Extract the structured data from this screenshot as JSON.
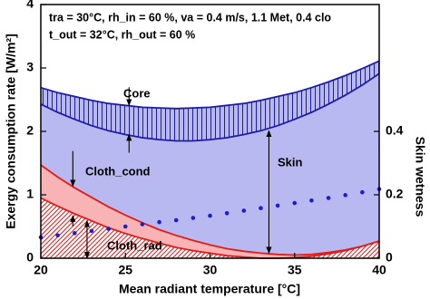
{
  "chart_data": {
    "type": "line",
    "xlabel": "Mean radiant temperature  [°C]",
    "ylabel": "Exergy consumption rate  [W/m²]",
    "y2label": "Skin wetness",
    "notes": [
      "tra = 30°C, rh_in = 60 %, va = 0.4 m/s, 1.1 Met, 0.4 clo",
      "t_out = 32°C, rh_out = 60 %"
    ],
    "annotations": [
      "Core",
      "Skin",
      "Cloth_cond",
      "Cloth_rad"
    ],
    "x": [
      20,
      21,
      22,
      23,
      24,
      25,
      26,
      27,
      28,
      29,
      30,
      31,
      32,
      33,
      34,
      35,
      36,
      37,
      38,
      39,
      40
    ],
    "xlim": [
      20,
      40
    ],
    "xticks": [
      20,
      25,
      30,
      35,
      40
    ],
    "ylim": [
      0,
      4
    ],
    "yticks": [
      0,
      1,
      2,
      3,
      4
    ],
    "y2lim": [
      0,
      0.8
    ],
    "y2ticks": [
      0,
      0.2,
      0.4
    ],
    "series": [
      {
        "color": "#1c1ca8",
        "fill": "#b9b9f2",
        "hatch": "vertical",
        "values": [
          2.69,
          2.61,
          2.55,
          2.49,
          2.44,
          2.41,
          2.38,
          2.37,
          2.36,
          2.37,
          2.38,
          2.41,
          2.44,
          2.49,
          2.55,
          2.61,
          2.69,
          2.78,
          2.88,
          2.99,
          3.11
        ]
      },
      {
        "color": "#1c1ca8",
        "fill": "#b9b9f2",
        "values": [
          2.43,
          2.3,
          2.19,
          2.09,
          2.01,
          1.95,
          1.9,
          1.87,
          1.85,
          1.85,
          1.87,
          1.9,
          1.95,
          2.01,
          2.09,
          2.19,
          2.3,
          2.43,
          2.57,
          2.73,
          2.91
        ]
      },
      {
        "color": "#e31a1a",
        "fill": "#f8b4b4",
        "values": [
          1.47,
          1.28,
          1.11,
          0.96,
          0.81,
          0.68,
          0.56,
          0.45,
          0.36,
          0.28,
          0.21,
          0.15,
          0.11,
          0.08,
          0.06,
          0.05,
          0.06,
          0.09,
          0.13,
          0.19,
          0.27
        ]
      },
      {
        "color": "#e31a1a",
        "fill": "#ffffff",
        "hatch": "diagonal",
        "values": [
          0.95,
          0.82,
          0.7,
          0.59,
          0.48,
          0.39,
          0.31,
          0.24,
          0.17,
          0.12,
          0.08,
          0.04,
          0.02,
          0,
          0,
          0.01,
          0.03,
          0.07,
          0.12,
          0.19,
          0.27
        ]
      },
      {
        "color": "#1c1cd0",
        "axis": "y2",
        "marker": "dot",
        "values": [
          0.066,
          0.072,
          0.079,
          0.086,
          0.093,
          0.1,
          0.107,
          0.114,
          0.12,
          0.127,
          0.134,
          0.142,
          0.15,
          0.158,
          0.166,
          0.174,
          0.182,
          0.19,
          0.199,
          0.208,
          0.218
        ]
      }
    ]
  }
}
